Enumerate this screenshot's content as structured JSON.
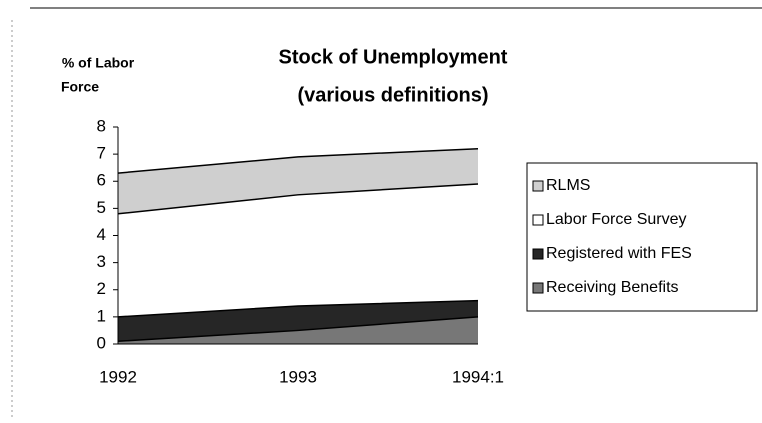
{
  "chart_data": {
    "type": "area",
    "title": "Stock of Unemployment",
    "subtitle": "(various definitions)",
    "y_label": [
      "% of Labor",
      "Force"
    ],
    "categories": [
      "1992",
      "1993",
      "1994:1"
    ],
    "series": [
      {
        "name": "RLMS",
        "color": "#cfcfcf",
        "values": [
          6.3,
          6.9,
          7.2
        ]
      },
      {
        "name": "Labor Force Survey",
        "color": "#ffffff",
        "values": [
          4.8,
          5.5,
          5.9
        ]
      },
      {
        "name": "Registered with FES",
        "color": "#262626",
        "values": [
          1.0,
          1.4,
          1.6
        ]
      },
      {
        "name": "Receiving Benefits",
        "color": "#777777",
        "values": [
          0.1,
          0.5,
          1.0
        ]
      }
    ],
    "ylim": [
      0,
      8
    ],
    "yticks": [
      0,
      1,
      2,
      3,
      4,
      5,
      6,
      7,
      8
    ]
  }
}
